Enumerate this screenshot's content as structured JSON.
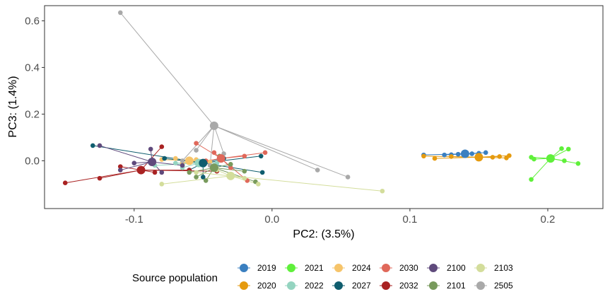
{
  "chart_data": {
    "type": "scatter",
    "xlabel": "PC2: (3.5%)",
    "ylabel": "PC3: (1.4%)",
    "xlim": [
      -0.165,
      0.24
    ],
    "ylim": [
      -0.205,
      0.665
    ],
    "x_ticks": [
      -0.1,
      0.0,
      0.1,
      0.2
    ],
    "x_tick_labels": [
      "-0.1",
      "0.0",
      "0.1",
      "0.2"
    ],
    "y_ticks": [
      0.0,
      0.2,
      0.4,
      0.6
    ],
    "y_tick_labels": [
      "0.0",
      "0.2",
      "0.4",
      "0.6"
    ],
    "grid": false,
    "legend_title": "Source population",
    "legend_position": "bottom",
    "series": [
      {
        "name": "2019",
        "color": "#3a7fc0",
        "centroid": [
          0.14,
          0.03
        ],
        "points": [
          [
            0.11,
            0.025
          ],
          [
            0.125,
            0.025
          ],
          [
            0.135,
            0.028
          ],
          [
            0.15,
            0.032
          ],
          [
            0.155,
            0.035
          ],
          [
            0.145,
            0.03
          ],
          [
            0.13,
            0.026
          ]
        ]
      },
      {
        "name": "2020",
        "color": "#e59a0e",
        "centroid": [
          0.15,
          0.015
        ],
        "points": [
          [
            0.11,
            0.02
          ],
          [
            0.118,
            0.01
          ],
          [
            0.13,
            0.018
          ],
          [
            0.16,
            0.015
          ],
          [
            0.17,
            0.012
          ],
          [
            0.172,
            0.022
          ],
          [
            0.165,
            0.018
          ]
        ]
      },
      {
        "name": "2021",
        "color": "#5ff03a",
        "centroid": [
          0.202,
          0.01
        ],
        "points": [
          [
            0.188,
            0.015
          ],
          [
            0.19,
            0.007
          ],
          [
            0.21,
            0.052
          ],
          [
            0.215,
            0.05
          ],
          [
            0.222,
            -0.012
          ],
          [
            0.212,
            0.0
          ],
          [
            0.188,
            -0.08
          ]
        ]
      },
      {
        "name": "2022",
        "color": "#94d4c0",
        "centroid": [
          -0.053,
          -0.01
        ],
        "points": [
          [
            -0.085,
            -0.02
          ],
          [
            -0.07,
            -0.01
          ],
          [
            -0.06,
            0.0
          ],
          [
            -0.05,
            -0.02
          ],
          [
            -0.04,
            -0.01
          ],
          [
            -0.065,
            -0.03
          ]
        ]
      },
      {
        "name": "2024",
        "color": "#f6c46a",
        "centroid": [
          -0.06,
          0.0
        ],
        "points": [
          [
            -0.08,
            0.005
          ],
          [
            -0.07,
            0.01
          ],
          [
            -0.055,
            0.005
          ],
          [
            -0.045,
            -0.005
          ],
          [
            -0.065,
            -0.01
          ]
        ]
      },
      {
        "name": "2027",
        "color": "#0f5d6e",
        "centroid": [
          -0.05,
          -0.01
        ],
        "points": [
          [
            -0.13,
            0.065
          ],
          [
            -0.078,
            0.01
          ],
          [
            -0.05,
            -0.07
          ],
          [
            -0.008,
            0.02
          ],
          [
            -0.007,
            -0.05
          ],
          [
            -0.06,
            -0.04
          ],
          [
            -0.035,
            0.01
          ]
        ]
      },
      {
        "name": "2030",
        "color": "#e0685a",
        "centroid": [
          -0.037,
          0.01
        ],
        "points": [
          [
            -0.055,
            0.075
          ],
          [
            -0.042,
            0.035
          ],
          [
            -0.02,
            0.02
          ],
          [
            -0.005,
            0.035
          ],
          [
            -0.018,
            -0.085
          ],
          [
            -0.03,
            -0.03
          ],
          [
            -0.048,
            0.0
          ]
        ]
      },
      {
        "name": "2032",
        "color": "#a92222",
        "centroid": [
          -0.095,
          -0.04
        ],
        "points": [
          [
            -0.15,
            -0.095
          ],
          [
            -0.125,
            -0.075
          ],
          [
            -0.11,
            -0.025
          ],
          [
            -0.08,
            0.06
          ],
          [
            -0.06,
            -0.04
          ],
          [
            -0.04,
            -0.045
          ],
          [
            -0.085,
            -0.05
          ]
        ]
      },
      {
        "name": "2100",
        "color": "#5f4a7c",
        "centroid": [
          -0.087,
          -0.005
        ],
        "points": [
          [
            -0.125,
            0.065
          ],
          [
            -0.11,
            -0.04
          ],
          [
            -0.088,
            0.05
          ],
          [
            -0.08,
            -0.05
          ],
          [
            -0.065,
            -0.02
          ],
          [
            -0.1,
            -0.01
          ]
        ]
      },
      {
        "name": "2101",
        "color": "#789a5c",
        "centroid": [
          -0.042,
          -0.03
        ],
        "points": [
          [
            -0.055,
            -0.07
          ],
          [
            -0.048,
            -0.085
          ],
          [
            -0.03,
            -0.015
          ],
          [
            -0.02,
            -0.045
          ],
          [
            -0.012,
            -0.09
          ],
          [
            -0.038,
            0.02
          ],
          [
            -0.06,
            -0.05
          ]
        ]
      },
      {
        "name": "2103",
        "color": "#d3dd9b",
        "centroid": [
          -0.03,
          -0.065
        ],
        "points": [
          [
            -0.08,
            -0.1
          ],
          [
            -0.055,
            -0.05
          ],
          [
            -0.01,
            -0.1
          ],
          [
            0.08,
            -0.13
          ],
          [
            -0.04,
            -0.04
          ],
          [
            -0.02,
            -0.075
          ]
        ]
      },
      {
        "name": "2505",
        "color": "#a9a9a9",
        "centroid": [
          -0.042,
          0.15
        ],
        "points": [
          [
            -0.11,
            0.635
          ],
          [
            -0.055,
            0.045
          ],
          [
            0.033,
            -0.04
          ],
          [
            0.055,
            -0.07
          ],
          [
            -0.035,
            0.03
          ],
          [
            -0.065,
            0.0
          ],
          [
            -0.045,
            -0.02
          ]
        ]
      }
    ]
  }
}
